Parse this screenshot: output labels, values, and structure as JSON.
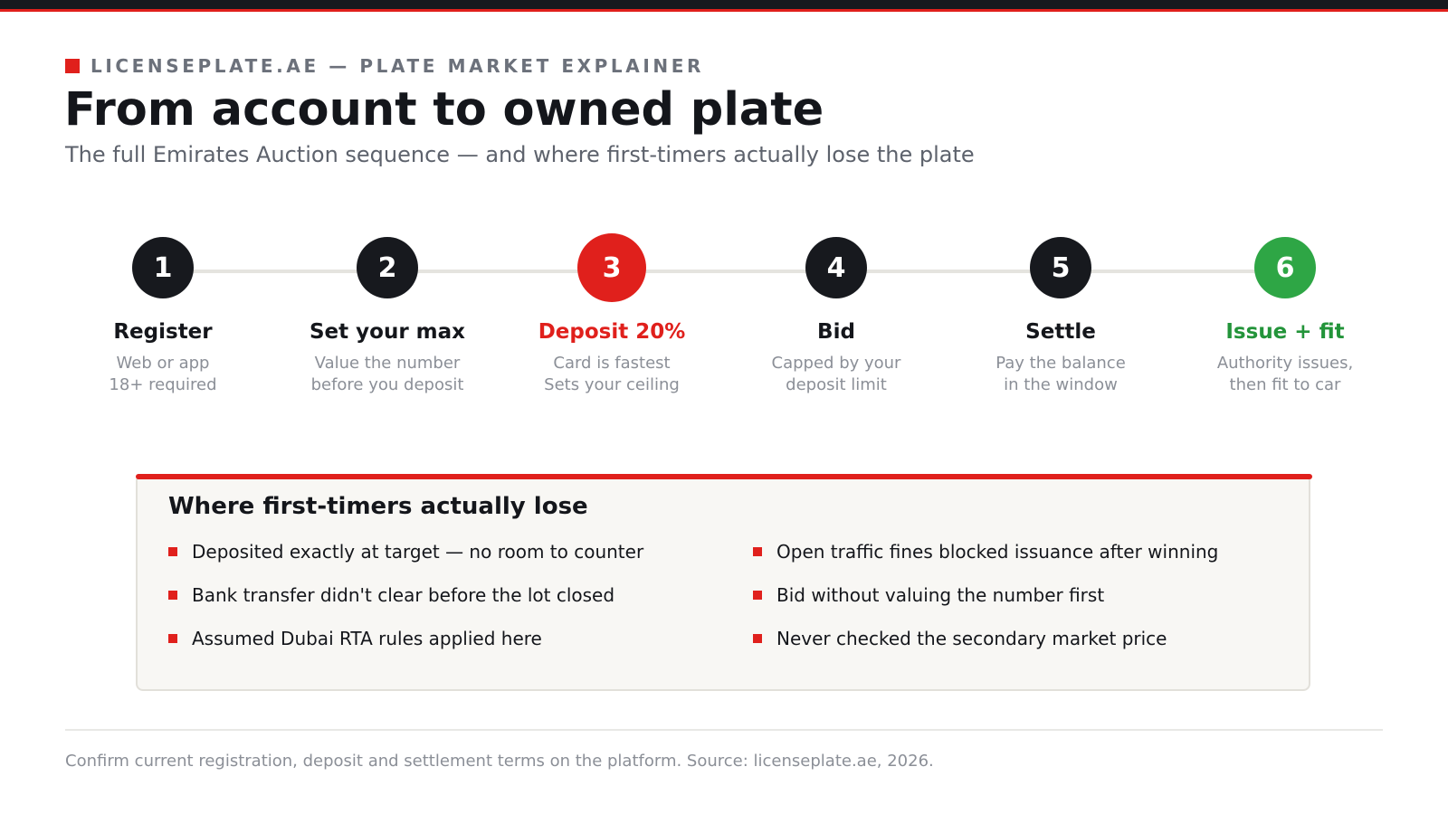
{
  "header": {
    "eyebrow": "LICENSEPLATE.AE — PLATE MARKET EXPLAINER",
    "title": "From account to owned plate",
    "subtitle": "The full Emirates Auction sequence — and where first-timers actually lose the plate"
  },
  "colors": {
    "accent": "#e0201c",
    "dark": "#17191e",
    "success": "#2ea645",
    "success_text": "#23943a",
    "muted": "#8b8f97",
    "panel_bg": "#f8f7f4"
  },
  "steps": [
    {
      "number": "1",
      "title": "Register",
      "line1": "Web or app",
      "line2": "18+ required",
      "style": "default"
    },
    {
      "number": "2",
      "title": "Set your max",
      "line1": "Value the number",
      "line2": "before you deposit",
      "style": "default"
    },
    {
      "number": "3",
      "title": "Deposit 20%",
      "line1": "Card is fastest",
      "line2": "Sets your ceiling",
      "style": "accent"
    },
    {
      "number": "4",
      "title": "Bid",
      "line1": "Capped by your",
      "line2": "deposit limit",
      "style": "default"
    },
    {
      "number": "5",
      "title": "Settle",
      "line1": "Pay the balance",
      "line2": "in the window",
      "style": "default"
    },
    {
      "number": "6",
      "title": "Issue + fit",
      "line1": "Authority issues,",
      "line2": "then fit to car",
      "style": "final"
    }
  ],
  "pitfalls": {
    "title": "Where first-timers actually lose",
    "left": [
      "Deposited exactly at target — no room to counter",
      "Bank transfer didn't clear before the lot closed",
      "Assumed Dubai RTA rules applied here"
    ],
    "right": [
      "Open traffic fines blocked issuance after winning",
      "Bid without valuing the number first",
      "Never checked the secondary market price"
    ]
  },
  "footer": {
    "note": "Confirm current registration, deposit and settlement terms on the platform. Source: licenseplate.ae, 2026."
  }
}
